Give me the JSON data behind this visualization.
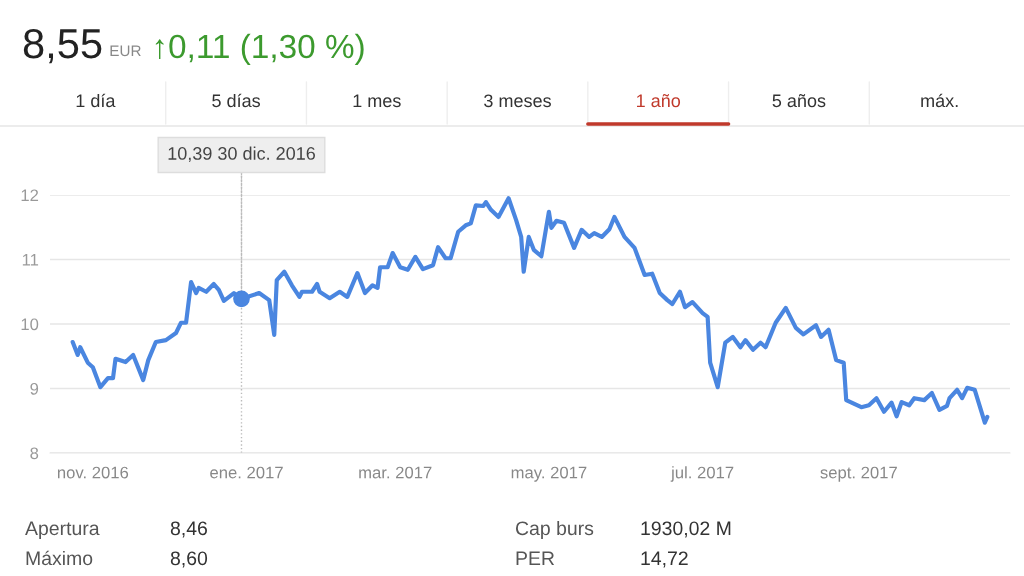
{
  "chart_data": {
    "type": "line",
    "title": "8,55",
    "x": [
      "2016-10-24",
      "2016-10-26",
      "2016-10-27",
      "2016-10-30",
      "2016-11-01",
      "2016-11-04",
      "2016-11-07",
      "2016-11-09",
      "2016-11-10",
      "2016-11-14",
      "2016-11-17",
      "2016-11-21",
      "2016-11-23",
      "2016-11-26",
      "2016-11-30",
      "2016-12-04",
      "2016-12-06",
      "2016-12-08",
      "2016-12-10",
      "2016-12-12",
      "2016-12-13",
      "2016-12-16",
      "2016-12-19",
      "2016-12-21",
      "2016-12-23",
      "2016-12-27",
      "2016-12-30",
      "2017-01-06",
      "2017-01-10",
      "2017-01-12",
      "2017-01-13",
      "2017-01-16",
      "2017-01-19",
      "2017-01-22",
      "2017-01-23",
      "2017-01-27",
      "2017-01-29",
      "2017-01-30",
      "2017-02-03",
      "2017-02-07",
      "2017-02-10",
      "2017-02-14",
      "2017-02-17",
      "2017-02-20",
      "2017-02-22",
      "2017-02-23",
      "2017-02-26",
      "2017-02-28",
      "2017-03-03",
      "2017-03-06",
      "2017-03-09",
      "2017-03-12",
      "2017-03-16",
      "2017-03-18",
      "2017-03-21",
      "2017-03-23",
      "2017-03-26",
      "2017-03-29",
      "2017-03-31",
      "2017-04-02",
      "2017-04-05",
      "2017-04-06",
      "2017-04-08",
      "2017-04-11",
      "2017-04-15",
      "2017-04-18",
      "2017-04-20",
      "2017-04-21",
      "2017-04-23",
      "2017-04-25",
      "2017-04-28",
      "2017-05-01",
      "2017-05-02",
      "2017-05-04",
      "2017-05-07",
      "2017-05-11",
      "2017-05-14",
      "2017-05-17",
      "2017-05-19",
      "2017-05-22",
      "2017-05-25",
      "2017-05-27",
      "2017-05-31",
      "2017-06-04",
      "2017-06-08",
      "2017-06-11",
      "2017-06-14",
      "2017-06-17",
      "2017-06-19",
      "2017-06-22",
      "2017-06-24",
      "2017-06-27",
      "2017-07-01",
      "2017-07-03",
      "2017-07-04",
      "2017-07-07",
      "2017-07-10",
      "2017-07-13",
      "2017-07-16",
      "2017-07-18",
      "2017-07-21",
      "2017-07-24",
      "2017-07-26",
      "2017-07-30",
      "2017-08-03",
      "2017-08-07",
      "2017-08-10",
      "2017-08-15",
      "2017-08-17",
      "2017-08-20",
      "2017-08-23",
      "2017-08-26",
      "2017-08-27",
      "2017-09-02",
      "2017-09-05",
      "2017-09-08",
      "2017-09-11",
      "2017-09-14",
      "2017-09-16",
      "2017-09-18",
      "2017-09-21",
      "2017-09-23",
      "2017-09-27",
      "2017-09-30",
      "2017-10-03",
      "2017-10-06",
      "2017-10-07",
      "2017-10-10",
      "2017-10-12",
      "2017-10-14",
      "2017-10-17",
      "2017-10-21",
      "2017-10-22"
    ],
    "series": [
      {
        "color": "#4a86e0",
        "values": [
          9.72,
          9.52,
          9.64,
          9.4,
          9.33,
          9.02,
          9.16,
          9.16,
          9.46,
          9.41,
          9.52,
          9.13,
          9.44,
          9.72,
          9.75,
          9.86,
          10.02,
          10.02,
          10.65,
          10.48,
          10.56,
          10.5,
          10.62,
          10.53,
          10.36,
          10.48,
          10.39,
          10.48,
          10.37,
          9.83,
          10.68,
          10.81,
          10.6,
          10.42,
          10.5,
          10.5,
          10.62,
          10.5,
          10.4,
          10.5,
          10.42,
          10.79,
          10.48,
          10.6,
          10.56,
          10.88,
          10.88,
          11.1,
          10.88,
          10.84,
          11.04,
          10.85,
          10.91,
          11.19,
          11.02,
          11.02,
          11.43,
          11.53,
          11.56,
          11.84,
          11.83,
          11.89,
          11.77,
          11.66,
          11.95,
          11.61,
          11.35,
          10.81,
          11.35,
          11.15,
          11.05,
          11.74,
          11.49,
          11.6,
          11.57,
          11.18,
          11.46,
          11.35,
          11.41,
          11.35,
          11.47,
          11.66,
          11.35,
          11.18,
          10.76,
          10.78,
          10.48,
          10.37,
          10.31,
          10.5,
          10.26,
          10.34,
          10.17,
          10.11,
          9.4,
          9.02,
          9.71,
          9.8,
          9.64,
          9.75,
          9.6,
          9.71,
          9.64,
          10.02,
          10.25,
          9.94,
          9.84,
          9.98,
          9.8,
          9.91,
          9.44,
          9.4,
          8.82,
          8.71,
          8.74,
          8.85,
          8.64,
          8.78,
          8.57,
          8.79,
          8.74,
          8.85,
          8.82,
          8.93,
          8.67,
          8.73,
          8.85,
          8.98,
          8.85,
          9.01,
          8.98,
          8.47,
          8.56
        ]
      }
    ],
    "xlim": [
      "2016-10-15",
      "2017-10-31"
    ],
    "ylim": [
      8,
      12
    ],
    "xticks": [
      {
        "value": "2016-11-01",
        "label": "nov. 2016"
      },
      {
        "value": "2017-01-01",
        "label": "ene. 2017"
      },
      {
        "value": "2017-03-01",
        "label": "mar. 2017"
      },
      {
        "value": "2017-05-01",
        "label": "may. 2017"
      },
      {
        "value": "2017-07-01",
        "label": "jul. 2017"
      },
      {
        "value": "2017-09-01",
        "label": "sept. 2017"
      }
    ],
    "yticks": [
      8,
      9,
      10,
      11,
      12
    ],
    "grid": "y",
    "marker": "none",
    "line_style": "solid",
    "ref_lines": [
      {
        "axis": "x",
        "value": "2016-12-30",
        "color": "#bbbbbb",
        "line_style": "dotted"
      }
    ],
    "annotations": [
      "EUR",
      "↑0,11 (1,30 %)",
      "1 día",
      "5 días",
      "1 mes",
      "3 meses",
      "1 año",
      "5 años",
      "máx.",
      "Apertura",
      "8,46",
      "Cap burs",
      "1930,02 M",
      "Máximo",
      "8,60",
      "PER",
      "14,72",
      {
        "text": "10,39 30 dic. 2016",
        "x": "2016-12-30",
        "y": 10.39
      }
    ]
  }
}
